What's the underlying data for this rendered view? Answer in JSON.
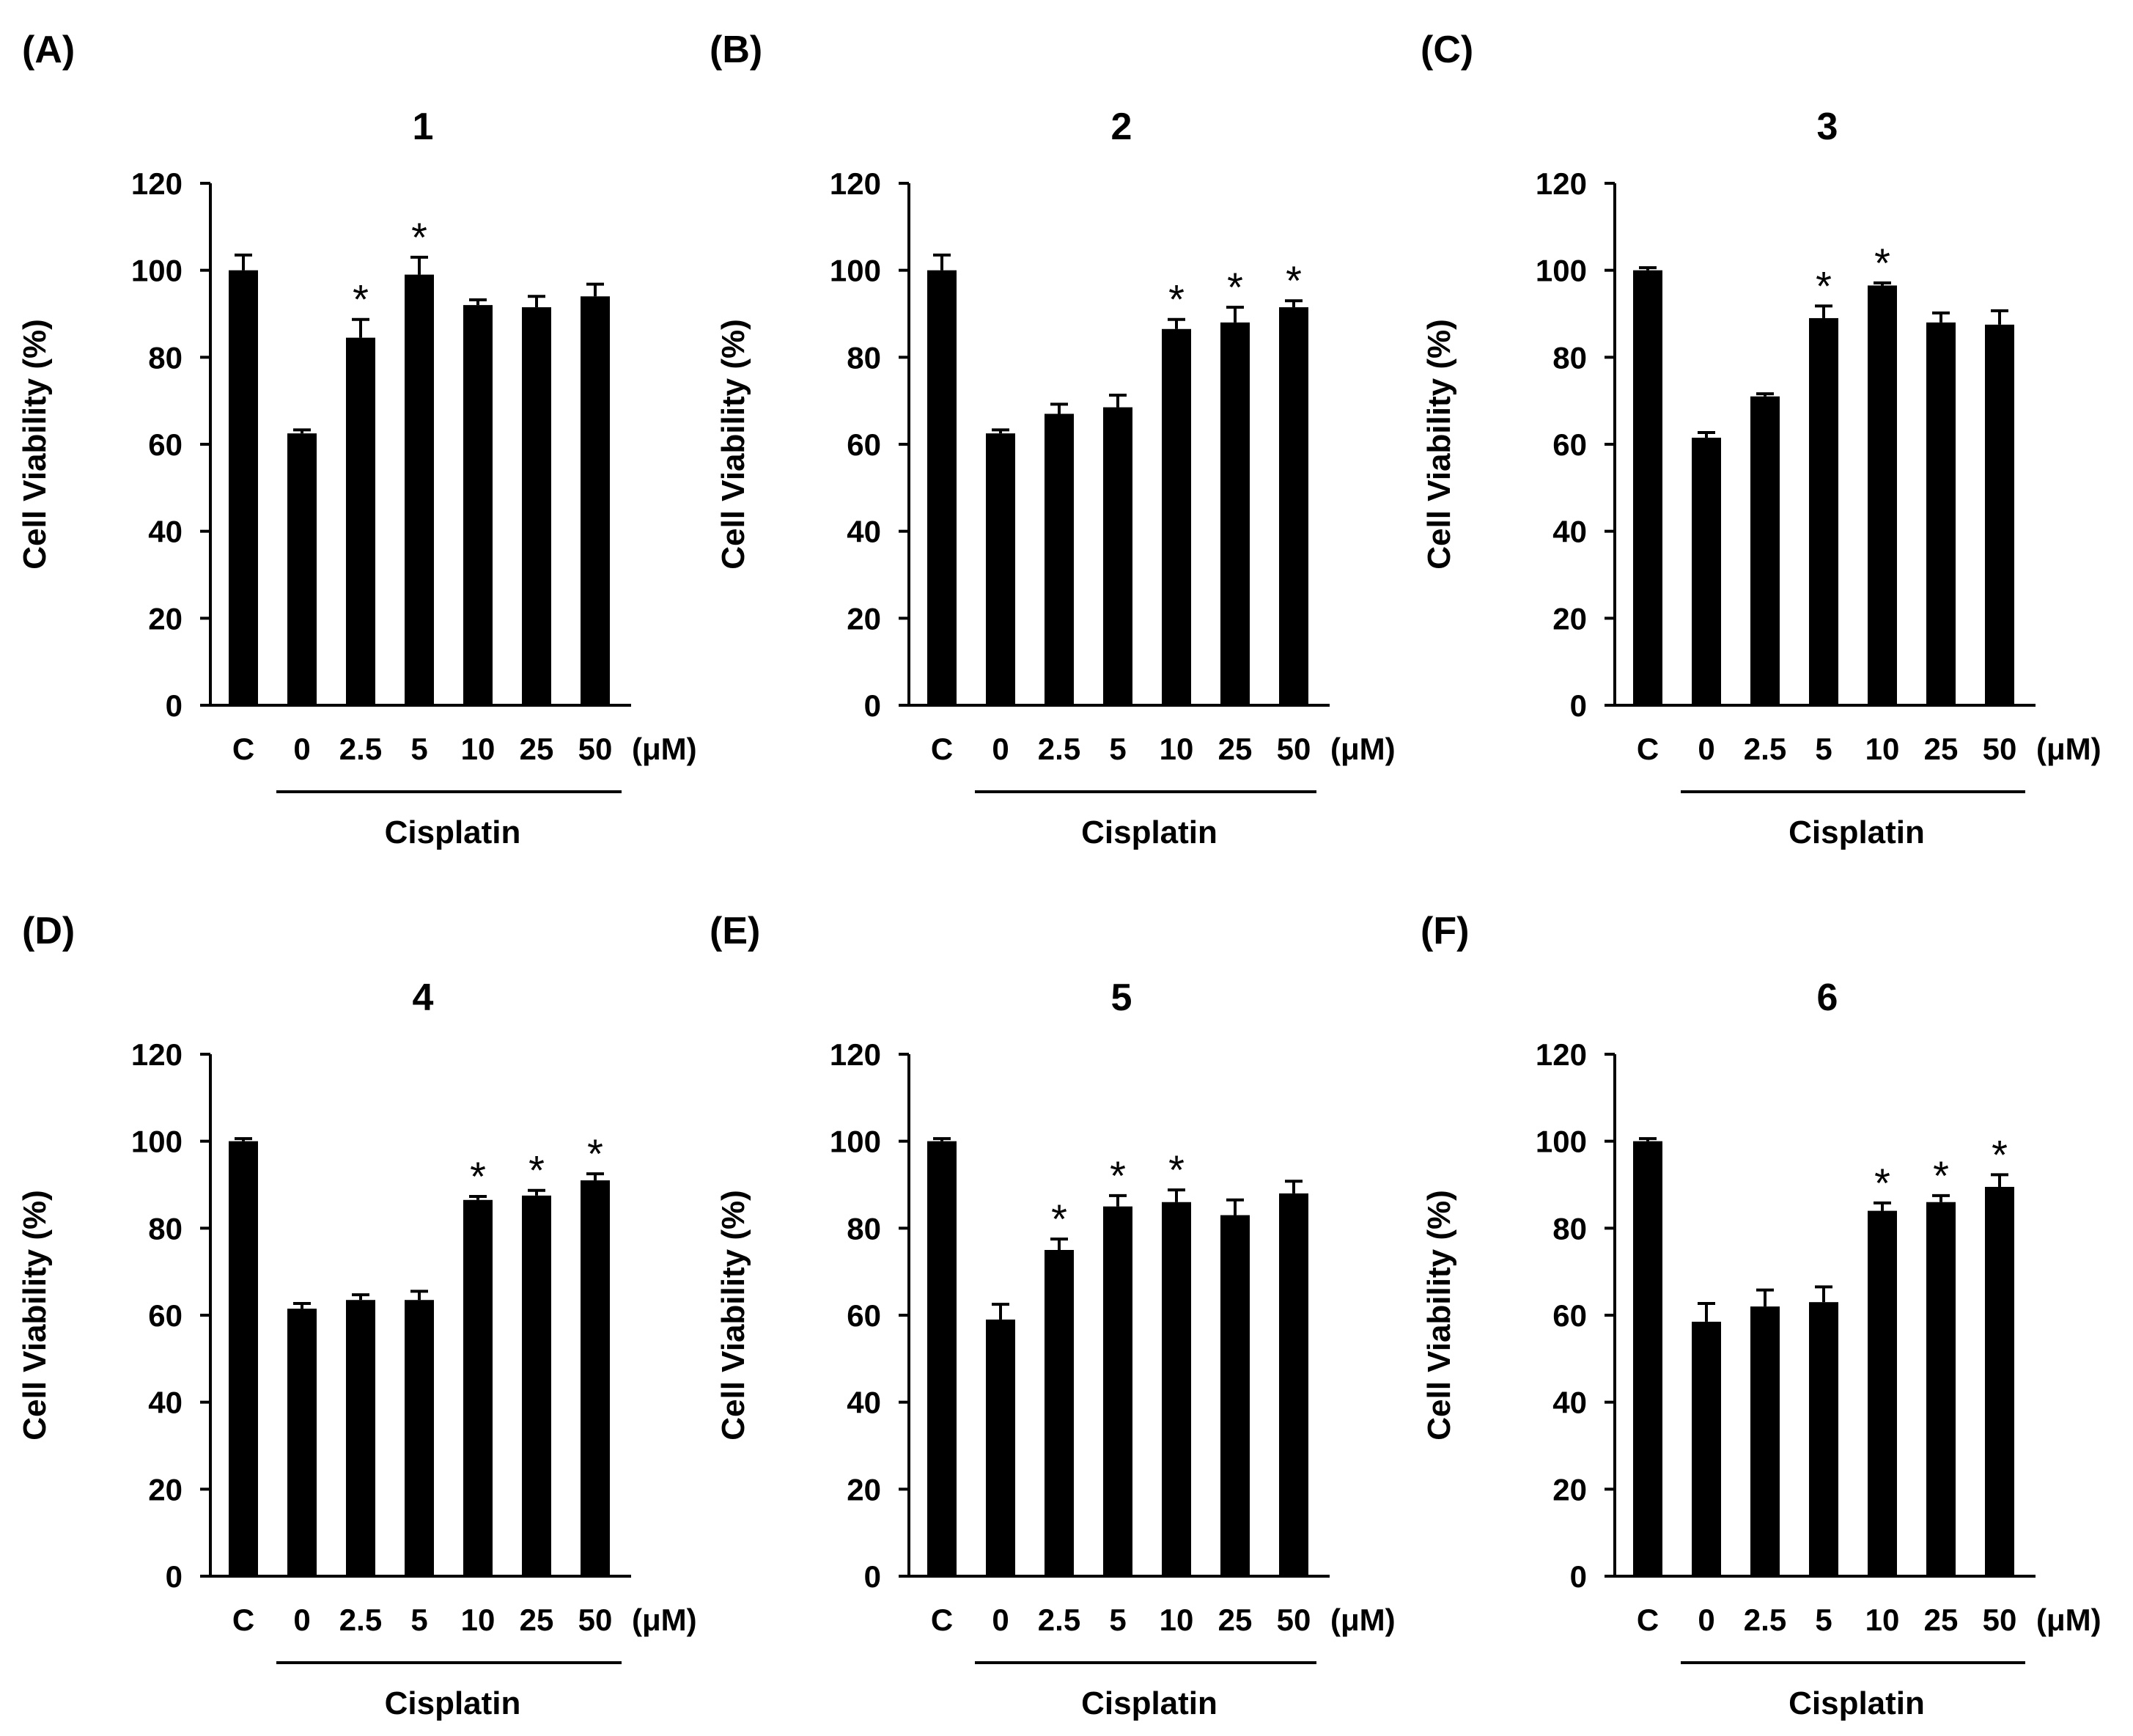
{
  "figure": {
    "tick_values": [
      "0",
      "20",
      "40",
      "60",
      "80",
      "100",
      "120"
    ],
    "ylabel": "Cell Viability (%)",
    "unit_label": "(μM)",
    "group_label": "Cisplatin",
    "significance_marker": "*"
  },
  "chart_data": [
    {
      "type": "bar",
      "panel_label": "(A)",
      "title": "1",
      "categories": [
        "C",
        "0",
        "2.5",
        "5",
        "10",
        "25",
        "50"
      ],
      "values": [
        100,
        62.5,
        84.5,
        99,
        92,
        91.5,
        94
      ],
      "errors": [
        3.5,
        0.8,
        4.2,
        4,
        1.2,
        2.5,
        2.8
      ],
      "significant": [
        false,
        false,
        true,
        true,
        false,
        false,
        false
      ],
      "xlabel": "Cisplatin",
      "ylabel": "Cell Viability (%)",
      "ylim": [
        0,
        120
      ]
    },
    {
      "type": "bar",
      "panel_label": "(B)",
      "title": "2",
      "categories": [
        "C",
        "0",
        "2.5",
        "5",
        "10",
        "25",
        "50"
      ],
      "values": [
        100,
        62.5,
        67,
        68.5,
        86.5,
        88,
        91.5
      ],
      "errors": [
        3.5,
        0.8,
        2.2,
        2.8,
        2.2,
        3.5,
        1.5
      ],
      "significant": [
        false,
        false,
        false,
        false,
        true,
        true,
        true
      ],
      "xlabel": "Cisplatin",
      "ylabel": "Cell Viability (%)",
      "ylim": [
        0,
        120
      ]
    },
    {
      "type": "bar",
      "panel_label": "(C)",
      "title": "3",
      "categories": [
        "C",
        "0",
        "2.5",
        "5",
        "10",
        "25",
        "50"
      ],
      "values": [
        100,
        61.5,
        71,
        89,
        96.5,
        88,
        87.5
      ],
      "errors": [
        0.6,
        1.2,
        0.6,
        2.8,
        0.6,
        2.2,
        3.2
      ],
      "significant": [
        false,
        false,
        false,
        true,
        true,
        false,
        false
      ],
      "xlabel": "Cisplatin",
      "ylabel": "Cell Viability (%)",
      "ylim": [
        0,
        120
      ]
    },
    {
      "type": "bar",
      "panel_label": "(D)",
      "title": "4",
      "categories": [
        "C",
        "0",
        "2.5",
        "5",
        "10",
        "25",
        "50"
      ],
      "values": [
        100,
        61.5,
        63.5,
        63.5,
        86.5,
        87.5,
        91
      ],
      "errors": [
        0.6,
        1.2,
        1.2,
        2.0,
        0.8,
        1.2,
        1.5
      ],
      "significant": [
        false,
        false,
        false,
        false,
        true,
        true,
        true
      ],
      "xlabel": "Cisplatin",
      "ylabel": "Cell Viability (%)",
      "ylim": [
        0,
        120
      ]
    },
    {
      "type": "bar",
      "panel_label": "(E)",
      "title": "5",
      "categories": [
        "C",
        "0",
        "2.5",
        "5",
        "10",
        "25",
        "50"
      ],
      "values": [
        100,
        59,
        75,
        85,
        86,
        83,
        88
      ],
      "errors": [
        0.6,
        3.5,
        2.5,
        2.5,
        2.8,
        3.5,
        2.8
      ],
      "significant": [
        false,
        false,
        true,
        true,
        true,
        false,
        false
      ],
      "xlabel": "Cisplatin",
      "ylabel": "Cell Viability (%)",
      "ylim": [
        0,
        120
      ]
    },
    {
      "type": "bar",
      "panel_label": "(F)",
      "title": "6",
      "categories": [
        "C",
        "0",
        "2.5",
        "5",
        "10",
        "25",
        "50"
      ],
      "values": [
        100,
        58.5,
        62,
        63,
        84,
        86,
        89.5
      ],
      "errors": [
        0.6,
        4.2,
        3.8,
        3.5,
        1.8,
        1.5,
        2.8
      ],
      "significant": [
        false,
        false,
        false,
        false,
        true,
        true,
        true
      ],
      "xlabel": "Cisplatin",
      "ylabel": "Cell Viability (%)",
      "ylim": [
        0,
        120
      ]
    }
  ]
}
